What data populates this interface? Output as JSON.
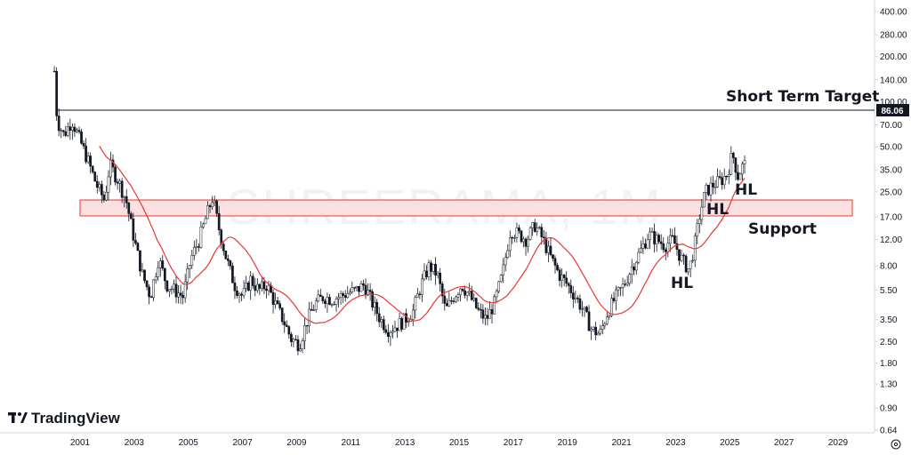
{
  "chart_data": {
    "type": "candlestick",
    "watermark": "SHREERAMA, 1M",
    "logo_text": "TradingView",
    "scale": "log",
    "colors": {
      "up": "#131722",
      "down": "#131722",
      "ma": "#e53935",
      "zone_fill": "#f8d7da",
      "zone_border": "#e53935",
      "target_line": "#131722",
      "axis": "#d1d4dc"
    },
    "y_ticks": [
      "400.00",
      "280.00",
      "200.00",
      "140.00",
      "100.00",
      "70.00",
      "50.00",
      "35.00",
      "25.00",
      "17.00",
      "12.00",
      "8.00",
      "5.50",
      "3.50",
      "2.50",
      "1.80",
      "1.30",
      "0.90",
      "0.64"
    ],
    "x_ticks": [
      "2001",
      "2003",
      "2005",
      "2007",
      "2009",
      "2011",
      "2013",
      "2015",
      "2017",
      "2019",
      "2021",
      "2023",
      "2025",
      "2027",
      "2029"
    ],
    "last_price": "86.06",
    "target_level": 86.06,
    "support_zone": [
      16.5,
      22
    ],
    "annotations": {
      "target": "Short Term Target",
      "support": "Support",
      "hl1": "HL",
      "hl2": "HL",
      "hl3": "HL"
    },
    "price_path": [
      [
        2000.05,
        160
      ],
      [
        2000.15,
        75
      ],
      [
        2000.4,
        60
      ],
      [
        2000.7,
        75
      ],
      [
        2001.0,
        55
      ],
      [
        2001.3,
        40
      ],
      [
        2001.6,
        28
      ],
      [
        2001.9,
        22
      ],
      [
        2002.1,
        38
      ],
      [
        2002.4,
        30
      ],
      [
        2002.7,
        22
      ],
      [
        2003.0,
        12
      ],
      [
        2003.3,
        7
      ],
      [
        2003.6,
        5
      ],
      [
        2003.9,
        9
      ],
      [
        2004.2,
        6
      ],
      [
        2004.5,
        5.5
      ],
      [
        2004.8,
        5
      ],
      [
        2005.1,
        9
      ],
      [
        2005.4,
        12
      ],
      [
        2005.7,
        18
      ],
      [
        2005.9,
        23
      ],
      [
        2006.1,
        15
      ],
      [
        2006.4,
        9
      ],
      [
        2006.7,
        6
      ],
      [
        2007.0,
        5
      ],
      [
        2007.3,
        6.5
      ],
      [
        2007.6,
        5.5
      ],
      [
        2007.9,
        6
      ],
      [
        2008.2,
        4.5
      ],
      [
        2008.5,
        3.5
      ],
      [
        2008.8,
        2.6
      ],
      [
        2009.1,
        2.4
      ],
      [
        2009.4,
        3.5
      ],
      [
        2009.7,
        4.5
      ],
      [
        2010.0,
        5
      ],
      [
        2010.3,
        4.8
      ],
      [
        2010.6,
        5
      ],
      [
        2010.9,
        5.3
      ],
      [
        2011.2,
        5.5
      ],
      [
        2011.5,
        6
      ],
      [
        2011.8,
        4.5
      ],
      [
        2012.1,
        3.5
      ],
      [
        2012.4,
        3
      ],
      [
        2012.7,
        3.2
      ],
      [
        2013.0,
        3.5
      ],
      [
        2013.3,
        4
      ],
      [
        2013.6,
        6
      ],
      [
        2013.9,
        8
      ],
      [
        2014.2,
        7
      ],
      [
        2014.5,
        4
      ],
      [
        2014.8,
        5
      ],
      [
        2015.1,
        6
      ],
      [
        2015.4,
        5
      ],
      [
        2015.7,
        4
      ],
      [
        2016.0,
        3.5
      ],
      [
        2016.3,
        4.5
      ],
      [
        2016.6,
        7
      ],
      [
        2016.9,
        14
      ],
      [
        2017.2,
        13
      ],
      [
        2017.5,
        12
      ],
      [
        2017.8,
        15
      ],
      [
        2018.1,
        12
      ],
      [
        2018.4,
        9
      ],
      [
        2018.7,
        7
      ],
      [
        2019.0,
        6
      ],
      [
        2019.3,
        5
      ],
      [
        2019.6,
        4
      ],
      [
        2019.9,
        3
      ],
      [
        2020.2,
        2.8
      ],
      [
        2020.5,
        4
      ],
      [
        2020.8,
        5
      ],
      [
        2021.1,
        6
      ],
      [
        2021.4,
        8
      ],
      [
        2021.7,
        10
      ],
      [
        2022.0,
        13
      ],
      [
        2022.3,
        12
      ],
      [
        2022.6,
        11
      ],
      [
        2022.9,
        12
      ],
      [
        2023.2,
        9
      ],
      [
        2023.5,
        7.5
      ],
      [
        2023.7,
        11
      ],
      [
        2023.9,
        18
      ],
      [
        2024.1,
        25
      ],
      [
        2024.4,
        28
      ],
      [
        2024.7,
        30
      ],
      [
        2024.9,
        33
      ],
      [
        2025.1,
        45
      ],
      [
        2025.3,
        32
      ],
      [
        2025.5,
        38
      ]
    ]
  }
}
